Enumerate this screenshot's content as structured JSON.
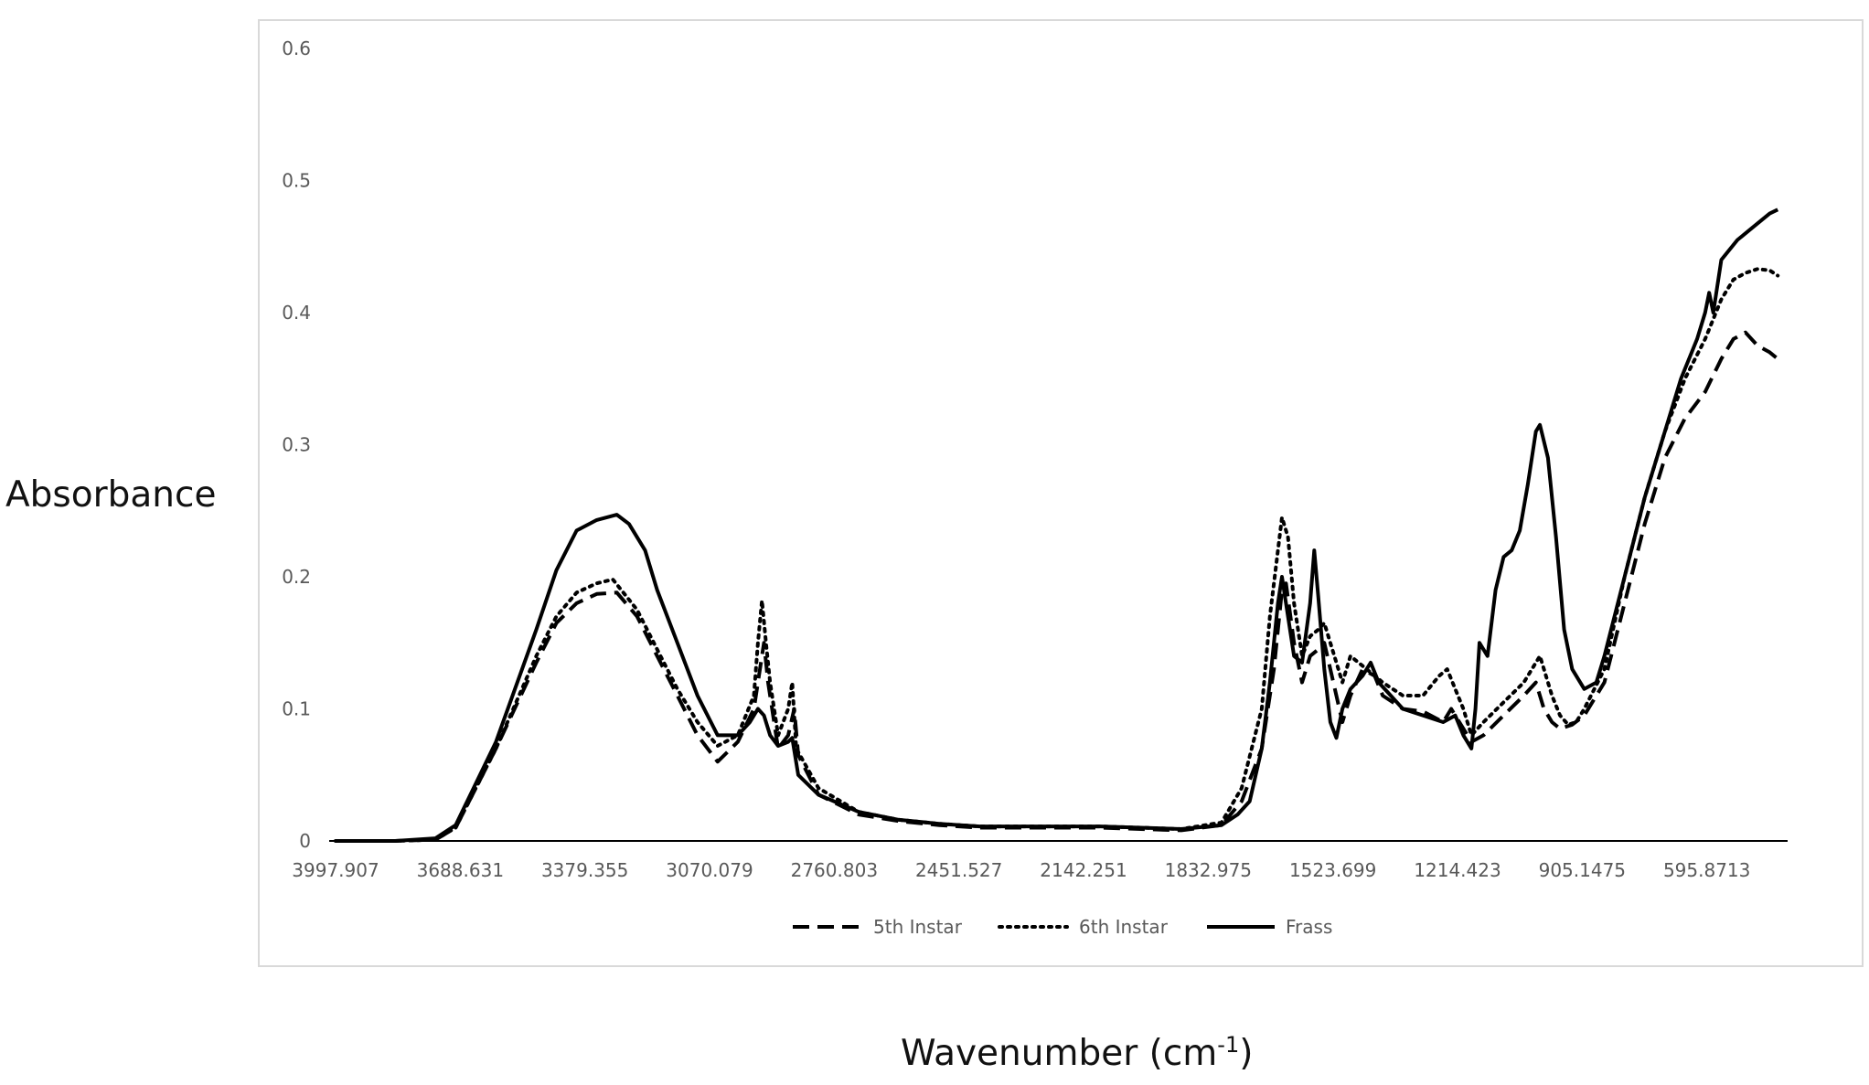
{
  "chart_data": {
    "type": "line",
    "title": "",
    "ylabel": "Absorbance",
    "xlabel": {
      "text": "Wavenumber (cm",
      "sup": "-1",
      "close": ")"
    },
    "x_reversed": true,
    "xlim": [
      3997.907,
      400
    ],
    "ylim": [
      0,
      0.6
    ],
    "grid": false,
    "legend_position": "bottom",
    "x_ticks": [
      "3997.907",
      "3688.631",
      "3379.355",
      "3070.079",
      "2760.803",
      "2451.527",
      "2142.251",
      "1832.975",
      "1523.699",
      "1214.423",
      "905.1475",
      "595.8713"
    ],
    "x_tick_values": [
      3997.907,
      3688.631,
      3379.355,
      3070.079,
      2760.803,
      2451.527,
      2142.251,
      1832.975,
      1523.699,
      1214.423,
      905.1475,
      595.8713
    ],
    "y_ticks": [
      "0",
      "0.1",
      "0.2",
      "0.3",
      "0.4",
      "0.5",
      "0.6"
    ],
    "y_tick_values": [
      0,
      0.1,
      0.2,
      0.3,
      0.4,
      0.5,
      0.6
    ],
    "series": [
      {
        "name": "5th Instar",
        "style": "dashed",
        "color": "#000000",
        "points": [
          [
            3998,
            0.0
          ],
          [
            3850,
            0.0
          ],
          [
            3750,
            0.001
          ],
          [
            3700,
            0.01
          ],
          [
            3600,
            0.07
          ],
          [
            3500,
            0.135
          ],
          [
            3450,
            0.165
          ],
          [
            3400,
            0.18
          ],
          [
            3350,
            0.187
          ],
          [
            3300,
            0.188
          ],
          [
            3250,
            0.17
          ],
          [
            3200,
            0.14
          ],
          [
            3150,
            0.11
          ],
          [
            3100,
            0.08
          ],
          [
            3050,
            0.06
          ],
          [
            3000,
            0.075
          ],
          [
            2960,
            0.1
          ],
          [
            2945,
            0.13
          ],
          [
            2935,
            0.15
          ],
          [
            2925,
            0.12
          ],
          [
            2900,
            0.07
          ],
          [
            2875,
            0.08
          ],
          [
            2860,
            0.1
          ],
          [
            2850,
            0.065
          ],
          [
            2800,
            0.035
          ],
          [
            2700,
            0.02
          ],
          [
            2600,
            0.015
          ],
          [
            2500,
            0.012
          ],
          [
            2400,
            0.01
          ],
          [
            2300,
            0.01
          ],
          [
            2200,
            0.01
          ],
          [
            2100,
            0.01
          ],
          [
            2000,
            0.009
          ],
          [
            1900,
            0.008
          ],
          [
            1800,
            0.012
          ],
          [
            1750,
            0.03
          ],
          [
            1700,
            0.07
          ],
          [
            1670,
            0.13
          ],
          [
            1650,
            0.19
          ],
          [
            1640,
            0.195
          ],
          [
            1620,
            0.15
          ],
          [
            1600,
            0.12
          ],
          [
            1580,
            0.14
          ],
          [
            1560,
            0.145
          ],
          [
            1545,
            0.15
          ],
          [
            1530,
            0.13
          ],
          [
            1515,
            0.11
          ],
          [
            1500,
            0.09
          ],
          [
            1480,
            0.11
          ],
          [
            1450,
            0.13
          ],
          [
            1420,
            0.125
          ],
          [
            1400,
            0.11
          ],
          [
            1350,
            0.1
          ],
          [
            1300,
            0.098
          ],
          [
            1250,
            0.09
          ],
          [
            1230,
            0.1
          ],
          [
            1200,
            0.085
          ],
          [
            1180,
            0.075
          ],
          [
            1150,
            0.08
          ],
          [
            1100,
            0.095
          ],
          [
            1050,
            0.11
          ],
          [
            1020,
            0.12
          ],
          [
            1000,
            0.1
          ],
          [
            980,
            0.09
          ],
          [
            960,
            0.085
          ],
          [
            930,
            0.088
          ],
          [
            900,
            0.095
          ],
          [
            850,
            0.12
          ],
          [
            800,
            0.18
          ],
          [
            750,
            0.24
          ],
          [
            700,
            0.29
          ],
          [
            650,
            0.32
          ],
          [
            600,
            0.34
          ],
          [
            560,
            0.365
          ],
          [
            530,
            0.38
          ],
          [
            500,
            0.385
          ],
          [
            470,
            0.375
          ],
          [
            440,
            0.37
          ],
          [
            420,
            0.365
          ]
        ]
      },
      {
        "name": "6th Instar",
        "style": "dotted",
        "color": "#000000",
        "points": [
          [
            3998,
            0.0
          ],
          [
            3850,
            0.0
          ],
          [
            3750,
            0.001
          ],
          [
            3700,
            0.01
          ],
          [
            3600,
            0.07
          ],
          [
            3500,
            0.14
          ],
          [
            3450,
            0.17
          ],
          [
            3400,
            0.188
          ],
          [
            3350,
            0.195
          ],
          [
            3310,
            0.198
          ],
          [
            3250,
            0.175
          ],
          [
            3200,
            0.145
          ],
          [
            3150,
            0.115
          ],
          [
            3100,
            0.09
          ],
          [
            3050,
            0.072
          ],
          [
            3000,
            0.08
          ],
          [
            2960,
            0.11
          ],
          [
            2950,
            0.15
          ],
          [
            2940,
            0.182
          ],
          [
            2930,
            0.15
          ],
          [
            2920,
            0.12
          ],
          [
            2900,
            0.08
          ],
          [
            2875,
            0.1
          ],
          [
            2865,
            0.12
          ],
          [
            2855,
            0.07
          ],
          [
            2800,
            0.04
          ],
          [
            2700,
            0.022
          ],
          [
            2600,
            0.016
          ],
          [
            2500,
            0.013
          ],
          [
            2400,
            0.011
          ],
          [
            2300,
            0.011
          ],
          [
            2200,
            0.011
          ],
          [
            2100,
            0.011
          ],
          [
            2000,
            0.01
          ],
          [
            1900,
            0.009
          ],
          [
            1800,
            0.014
          ],
          [
            1750,
            0.04
          ],
          [
            1700,
            0.1
          ],
          [
            1680,
            0.17
          ],
          [
            1660,
            0.22
          ],
          [
            1650,
            0.245
          ],
          [
            1635,
            0.23
          ],
          [
            1620,
            0.18
          ],
          [
            1600,
            0.14
          ],
          [
            1580,
            0.155
          ],
          [
            1560,
            0.16
          ],
          [
            1545,
            0.165
          ],
          [
            1530,
            0.15
          ],
          [
            1510,
            0.13
          ],
          [
            1500,
            0.12
          ],
          [
            1480,
            0.14
          ],
          [
            1460,
            0.135
          ],
          [
            1440,
            0.13
          ],
          [
            1400,
            0.12
          ],
          [
            1350,
            0.11
          ],
          [
            1300,
            0.11
          ],
          [
            1260,
            0.125
          ],
          [
            1240,
            0.13
          ],
          [
            1220,
            0.115
          ],
          [
            1200,
            0.1
          ],
          [
            1180,
            0.08
          ],
          [
            1150,
            0.09
          ],
          [
            1100,
            0.105
          ],
          [
            1050,
            0.12
          ],
          [
            1020,
            0.135
          ],
          [
            1010,
            0.14
          ],
          [
            1000,
            0.13
          ],
          [
            980,
            0.11
          ],
          [
            960,
            0.095
          ],
          [
            940,
            0.088
          ],
          [
            920,
            0.09
          ],
          [
            900,
            0.1
          ],
          [
            850,
            0.13
          ],
          [
            800,
            0.2
          ],
          [
            750,
            0.26
          ],
          [
            700,
            0.31
          ],
          [
            650,
            0.35
          ],
          [
            600,
            0.38
          ],
          [
            560,
            0.41
          ],
          [
            530,
            0.425
          ],
          [
            500,
            0.43
          ],
          [
            470,
            0.433
          ],
          [
            440,
            0.432
          ],
          [
            420,
            0.428
          ]
        ]
      },
      {
        "name": "Frass",
        "style": "solid",
        "color": "#000000",
        "points": [
          [
            3998,
            0.0
          ],
          [
            3850,
            0.0
          ],
          [
            3750,
            0.002
          ],
          [
            3700,
            0.012
          ],
          [
            3600,
            0.075
          ],
          [
            3500,
            0.16
          ],
          [
            3450,
            0.205
          ],
          [
            3400,
            0.235
          ],
          [
            3350,
            0.243
          ],
          [
            3300,
            0.247
          ],
          [
            3270,
            0.24
          ],
          [
            3230,
            0.22
          ],
          [
            3200,
            0.19
          ],
          [
            3150,
            0.15
          ],
          [
            3100,
            0.11
          ],
          [
            3050,
            0.08
          ],
          [
            3000,
            0.08
          ],
          [
            2970,
            0.09
          ],
          [
            2950,
            0.1
          ],
          [
            2935,
            0.095
          ],
          [
            2920,
            0.08
          ],
          [
            2900,
            0.072
          ],
          [
            2875,
            0.075
          ],
          [
            2865,
            0.078
          ],
          [
            2850,
            0.05
          ],
          [
            2800,
            0.035
          ],
          [
            2700,
            0.022
          ],
          [
            2600,
            0.016
          ],
          [
            2500,
            0.013
          ],
          [
            2400,
            0.011
          ],
          [
            2300,
            0.011
          ],
          [
            2200,
            0.011
          ],
          [
            2100,
            0.011
          ],
          [
            2000,
            0.01
          ],
          [
            1900,
            0.009
          ],
          [
            1800,
            0.012
          ],
          [
            1760,
            0.02
          ],
          [
            1730,
            0.03
          ],
          [
            1700,
            0.07
          ],
          [
            1680,
            0.12
          ],
          [
            1660,
            0.18
          ],
          [
            1650,
            0.2
          ],
          [
            1640,
            0.18
          ],
          [
            1620,
            0.14
          ],
          [
            1600,
            0.135
          ],
          [
            1580,
            0.18
          ],
          [
            1570,
            0.22
          ],
          [
            1560,
            0.185
          ],
          [
            1545,
            0.13
          ],
          [
            1530,
            0.09
          ],
          [
            1515,
            0.078
          ],
          [
            1500,
            0.1
          ],
          [
            1480,
            0.115
          ],
          [
            1450,
            0.125
          ],
          [
            1430,
            0.135
          ],
          [
            1410,
            0.12
          ],
          [
            1380,
            0.11
          ],
          [
            1350,
            0.1
          ],
          [
            1300,
            0.095
          ],
          [
            1250,
            0.09
          ],
          [
            1220,
            0.095
          ],
          [
            1200,
            0.08
          ],
          [
            1180,
            0.07
          ],
          [
            1170,
            0.1
          ],
          [
            1160,
            0.15
          ],
          [
            1140,
            0.14
          ],
          [
            1120,
            0.19
          ],
          [
            1100,
            0.215
          ],
          [
            1080,
            0.22
          ],
          [
            1060,
            0.235
          ],
          [
            1040,
            0.27
          ],
          [
            1020,
            0.31
          ],
          [
            1010,
            0.315
          ],
          [
            990,
            0.29
          ],
          [
            970,
            0.23
          ],
          [
            950,
            0.16
          ],
          [
            930,
            0.13
          ],
          [
            900,
            0.115
          ],
          [
            870,
            0.12
          ],
          [
            850,
            0.14
          ],
          [
            800,
            0.2
          ],
          [
            750,
            0.26
          ],
          [
            700,
            0.31
          ],
          [
            660,
            0.35
          ],
          [
            620,
            0.38
          ],
          [
            600,
            0.4
          ],
          [
            590,
            0.415
          ],
          [
            580,
            0.4
          ],
          [
            560,
            0.44
          ],
          [
            520,
            0.455
          ],
          [
            480,
            0.465
          ],
          [
            440,
            0.475
          ],
          [
            420,
            0.478
          ]
        ]
      }
    ]
  }
}
